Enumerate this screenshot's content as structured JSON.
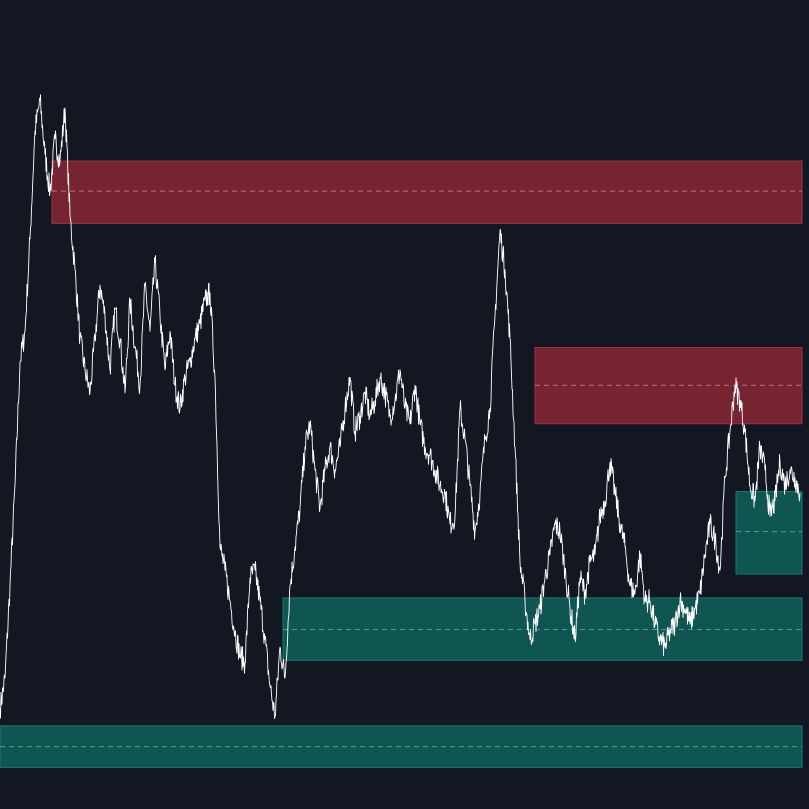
{
  "chart_data": {
    "type": "line",
    "x": [
      0,
      5,
      10,
      15,
      20,
      25,
      30,
      35,
      40,
      45,
      50,
      55,
      60,
      65,
      70,
      75,
      80,
      85,
      90,
      95,
      100,
      105,
      110,
      115,
      120,
      125,
      130,
      135,
      140,
      145,
      150,
      155,
      160,
      165,
      170,
      175,
      180,
      185,
      190,
      195,
      200,
      205,
      210,
      215,
      220,
      225,
      230,
      235,
      240,
      245,
      250,
      255,
      260,
      265,
      270,
      275,
      280,
      285,
      290,
      295,
      300,
      305,
      310,
      315,
      320,
      325,
      330,
      335,
      340,
      345,
      350,
      355,
      360,
      365,
      370,
      375,
      380,
      385,
      390,
      395,
      400,
      405,
      410,
      415,
      420,
      425,
      430,
      435,
      440,
      445,
      450,
      455,
      460,
      465,
      470,
      475,
      480,
      485,
      490,
      495,
      500,
      505,
      510,
      515,
      520,
      525,
      530,
      535,
      540,
      545,
      550,
      555,
      560,
      565,
      570,
      575,
      580,
      585,
      590,
      595,
      600,
      605,
      610,
      615,
      620,
      625,
      630,
      635,
      640,
      645,
      650,
      655,
      660,
      665,
      670,
      675,
      680,
      685,
      690,
      695,
      700,
      705,
      710,
      715,
      720,
      725,
      730,
      735,
      740,
      745,
      750,
      755,
      760,
      765,
      770,
      775,
      780,
      785,
      790,
      795,
      800
    ],
    "series": [
      {
        "color": "#ffffff",
        "values": [
          13,
          17,
          29,
          42,
          58,
          62,
          74,
          88,
          92,
          85,
          80,
          87,
          84,
          91,
          77,
          70,
          61,
          57,
          54,
          61,
          68,
          64,
          57,
          65,
          61,
          54,
          66,
          60,
          55,
          68,
          62,
          71,
          64,
          57,
          62,
          55,
          52,
          56,
          58,
          61,
          63,
          66,
          67,
          56,
          34,
          31,
          27,
          23,
          20,
          19,
          30,
          31,
          27,
          22,
          16,
          12,
          21,
          17,
          29,
          34,
          39,
          47,
          50,
          44,
          39,
          44,
          47,
          44,
          47,
          52,
          56,
          49,
          51,
          54,
          51,
          53,
          56,
          54,
          51,
          53,
          57,
          52,
          50,
          55,
          50,
          47,
          46,
          44,
          42,
          41,
          37,
          38,
          52,
          48,
          42,
          36,
          41,
          48,
          52,
          64,
          75,
          70,
          61,
          47,
          32,
          27,
          22,
          24,
          26,
          30,
          33,
          37,
          36,
          31,
          26,
          22,
          30,
          28,
          32,
          33,
          38,
          40,
          45,
          41,
          37,
          34,
          29,
          28,
          33,
          27,
          27,
          24,
          22,
          21,
          23,
          24,
          27,
          26,
          24,
          26,
          28,
          33,
          37,
          35,
          31,
          43,
          49,
          55,
          53,
          49,
          42,
          40,
          47,
          44,
          38,
          40,
          45,
          42,
          44,
          43,
          41
        ]
      }
    ],
    "zones": [
      {
        "kind": "supply",
        "x0": 52,
        "x1": 802,
        "y0": 76,
        "y1": 84.1,
        "mid": 80.2,
        "color": "#7f2633"
      },
      {
        "kind": "supply",
        "x0": 535,
        "x1": 802,
        "y0": 50,
        "y1": 59.9,
        "mid": 55.0,
        "color": "#7f2633"
      },
      {
        "kind": "demand",
        "x0": 736,
        "x1": 802,
        "y0": 30.5,
        "y1": 41.2,
        "mid": 36.0,
        "color": "#0f5c57"
      },
      {
        "kind": "demand",
        "x0": 283,
        "x1": 802,
        "y0": 19.3,
        "y1": 27.4,
        "mid": 23.3,
        "color": "#0f5c57"
      },
      {
        "kind": "demand",
        "x0": 0,
        "x1": 802,
        "y0": 5.4,
        "y1": 10.8,
        "mid": 8.1,
        "color": "#0f5c57"
      }
    ],
    "xlim": [
      0,
      809
    ],
    "ylim": [
      0,
      105
    ],
    "grid": false,
    "background": "#131722"
  }
}
